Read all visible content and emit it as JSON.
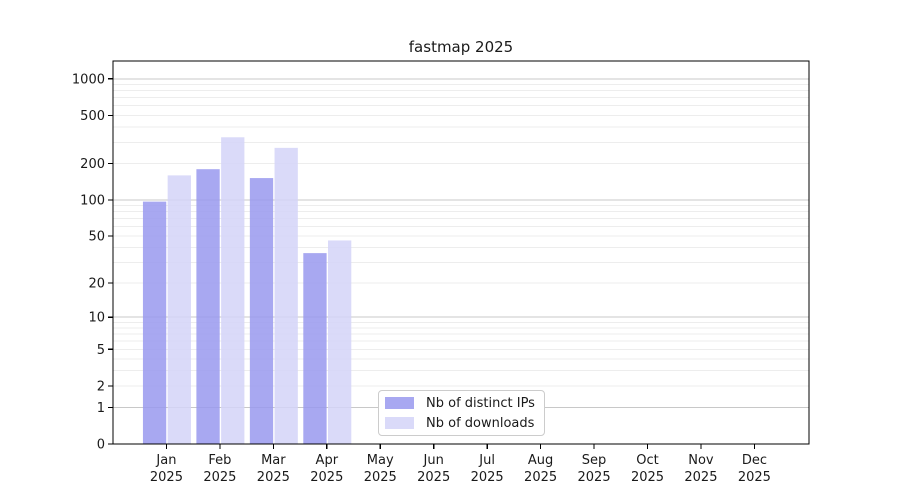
{
  "chart_data": {
    "type": "bar",
    "title": "fastmap 2025",
    "categories": [
      "Jan 2025",
      "Feb 2025",
      "Mar 2025",
      "Apr 2025",
      "May 2025",
      "Jun 2025",
      "Jul 2025",
      "Aug 2025",
      "Sep 2025",
      "Oct 2025",
      "Nov 2025",
      "Dec 2025"
    ],
    "series": [
      {
        "name": "Nb of distinct IPs",
        "color": "#9999ee",
        "alpha": 0.85,
        "values": [
          97,
          180,
          152,
          36,
          null,
          null,
          null,
          null,
          null,
          null,
          null,
          null
        ]
      },
      {
        "name": "Nb of downloads",
        "color": "#d4d4f8",
        "alpha": 0.85,
        "values": [
          160,
          330,
          270,
          46,
          null,
          null,
          null,
          null,
          null,
          null,
          null,
          null
        ]
      }
    ],
    "xlabel": "",
    "ylabel": "",
    "yscale": "log1p",
    "yticks": [
      0,
      1,
      2,
      5,
      10,
      20,
      50,
      100,
      200,
      500,
      1000
    ],
    "ylim": [
      0,
      1400
    ],
    "grid": {
      "major_ticks": [
        1,
        10,
        100,
        1000
      ],
      "major_color": "#c8c8c8",
      "minor_color": "#ededed"
    },
    "legend": {
      "location": "lower center"
    },
    "colors": {
      "axis": "#000000",
      "tick_text": "#1a1a1a",
      "background": "#ffffff"
    }
  }
}
